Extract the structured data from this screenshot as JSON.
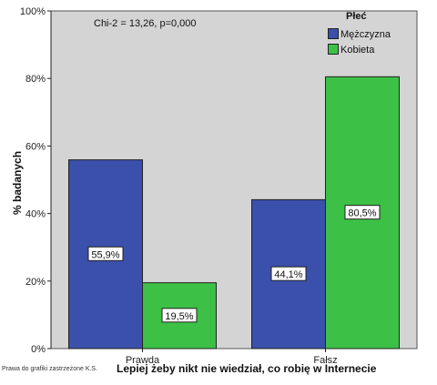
{
  "chart_data": {
    "type": "bar",
    "xlabel": "Lepiej żeby nikt nie wiedział, co robię w  Internecie",
    "ylabel": "% badanych",
    "categories": [
      "Prawda",
      "Fałsz"
    ],
    "series": [
      {
        "name": "Mężczyzna",
        "values": [
          55.9,
          44.1
        ],
        "labels": [
          "55,9%",
          "44,1%"
        ],
        "color": "#3a50aa"
      },
      {
        "name": "Kobieta",
        "values": [
          19.5,
          80.5
        ],
        "labels": [
          "19,5%",
          "80,5%"
        ],
        "color": "#3cc046"
      }
    ],
    "ylim": [
      0,
      100
    ],
    "yticks": [
      0,
      20,
      40,
      60,
      80,
      100
    ],
    "ytick_labels": [
      "0%",
      "20%",
      "40%",
      "60%",
      "80%",
      "100%"
    ],
    "legend_title": "Płeć",
    "legend_position": "top-right",
    "annotation": "Chi-2 = 13,26, p=0,000",
    "grid": false,
    "background_color": "#d4d4d4"
  },
  "footer_note": "Prawa do grafiki zastrzeżone K.S."
}
